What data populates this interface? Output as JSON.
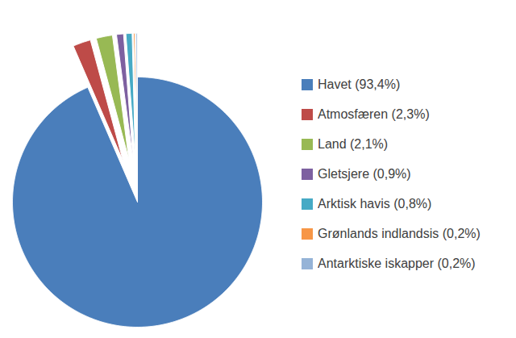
{
  "chart_data": {
    "type": "pie",
    "categories": [
      "Havet (93,4%)",
      "Atmosfæren (2,3%)",
      "Land (2,1%)",
      "Gletsjere (0,9%)",
      "Arktisk havis (0,8%)",
      "Grønlands indlandsis (0,2%)",
      "Antarktiske iskapper (0,2%)"
    ],
    "values": [
      93.4,
      2.3,
      2.1,
      0.9,
      0.8,
      0.2,
      0.2
    ],
    "colors": [
      "#4a7ebb",
      "#be4b48",
      "#98b954",
      "#7d60a0",
      "#46aac5",
      "#f79646",
      "#95b3d7"
    ],
    "legend": "right"
  }
}
